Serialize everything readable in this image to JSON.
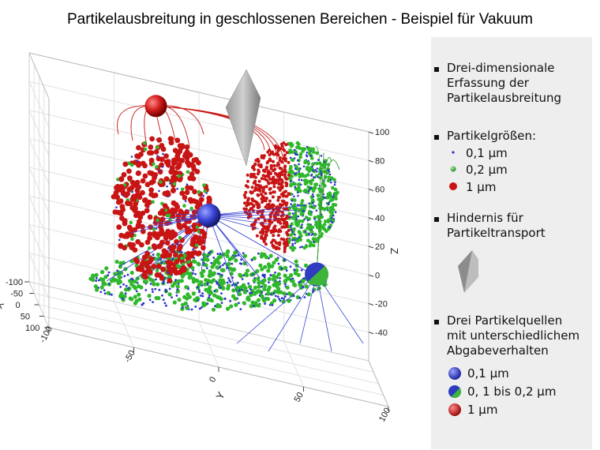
{
  "title": "Partikelausbreitung in geschlossenen Bereichen - Beispiel für Vakuum",
  "legend": {
    "section1": [
      "Drei-dimensionale",
      "Erfassung der",
      "Partikelausbreitung"
    ],
    "section2_title": "Partikelgrößen:",
    "sizes": [
      {
        "label": "0,1 µm",
        "color": "#2e35c8",
        "marker": "small-dot"
      },
      {
        "label": "0,2 µm",
        "color": "#2fb82c",
        "marker": "medium-dot"
      },
      {
        "label": "1 µm",
        "color": "#c81414",
        "marker": "large-dot"
      }
    ],
    "section3": [
      "Hindernis für",
      "Partikeltransport"
    ],
    "section4": [
      "Drei Partikelquellen",
      "mit unterschiedlichem",
      "Abgabeverhalten"
    ],
    "sources": [
      {
        "label": "0,1 µm",
        "color": "#3a45d6",
        "marker": "blue-sphere"
      },
      {
        "label": "0, 1 bis 0,2 µm",
        "color": "#36a233",
        "marker": "blue-green-sphere"
      },
      {
        "label": "1 µm",
        "color": "#d11a1a",
        "marker": "red-sphere"
      }
    ]
  },
  "chart_data": {
    "type": "scatter",
    "projection": "3d",
    "title": "Partikelausbreitung in geschlossenen Bereichen - Beispiel für Vakuum",
    "axes": {
      "x": {
        "label": "X",
        "range": [
          -100,
          100
        ],
        "ticks": [
          "100",
          "50",
          "0",
          "-50",
          "-100"
        ]
      },
      "y": {
        "label": "Y",
        "range": [
          -100,
          100
        ],
        "ticks": [
          "-100",
          "-50",
          "0",
          "50",
          "100"
        ]
      },
      "z": {
        "label": "Z",
        "range": [
          -60,
          100
        ],
        "ticks": [
          "100",
          "80",
          "60",
          "40",
          "20",
          "0",
          "-20",
          "-40"
        ]
      }
    },
    "grid": true,
    "series": [
      {
        "name": "0,1 µm",
        "color": "#2e35c8"
      },
      {
        "name": "0,2 µm",
        "color": "#2fb82c"
      },
      {
        "name": "1 µm",
        "color": "#c81414"
      }
    ],
    "clouds": [
      {
        "kind": "sphere",
        "center": [
          -40,
          -40,
          55
        ],
        "radius": 35,
        "dominant": "1 µm"
      },
      {
        "kind": "sphere",
        "center": [
          40,
          15,
          62
        ],
        "radius": 30,
        "dominant": "1 µm / 0,2 µm"
      },
      {
        "kind": "disc",
        "center": [
          0,
          0,
          -10
        ],
        "radius": 75,
        "dominant": "0,2 µm / 0,1 µm"
      }
    ],
    "sources": [
      {
        "name": "1 µm",
        "position": [
          -20,
          -30,
          95
        ]
      },
      {
        "name": "0,1 µm",
        "position": [
          0,
          0,
          30
        ]
      },
      {
        "name": "0, 1 bis 0,2 µm",
        "position": [
          60,
          60,
          15
        ]
      }
    ],
    "obstacle": {
      "name": "Hindernis für Partikeltransport",
      "position": [
        10,
        -10,
        90
      ]
    }
  }
}
